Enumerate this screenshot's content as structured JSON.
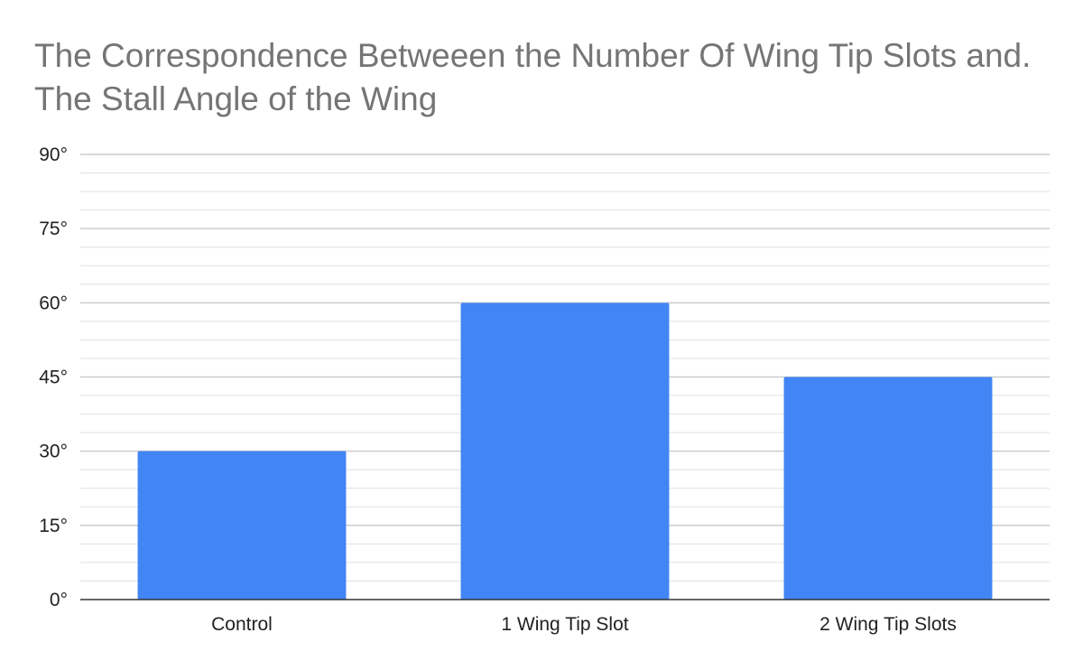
{
  "chart_data": {
    "type": "bar",
    "title": "The Correspondence Betweeen the Number Of Wing Tip Slots and. The Stall Angle of the Wing",
    "xlabel": "",
    "ylabel": "",
    "categories": [
      "Control",
      "1 Wing Tip Slot",
      "2 Wing Tip Slots"
    ],
    "values": [
      30,
      60,
      45
    ],
    "ylim": [
      0,
      90
    ],
    "y_ticks": [
      0,
      15,
      30,
      45,
      60,
      75,
      90
    ],
    "y_tick_labels": [
      "0°",
      "15°",
      "30°",
      "45°",
      "60°",
      "75°",
      "90°"
    ],
    "minor_gridlines": true,
    "grid": true,
    "legend": "none",
    "bar_color": "#4285f4",
    "gridline_color": "#cccccc",
    "minor_gridline_color": "#e0e0e0",
    "axis_color": "#333333",
    "title_color": "#757575"
  }
}
